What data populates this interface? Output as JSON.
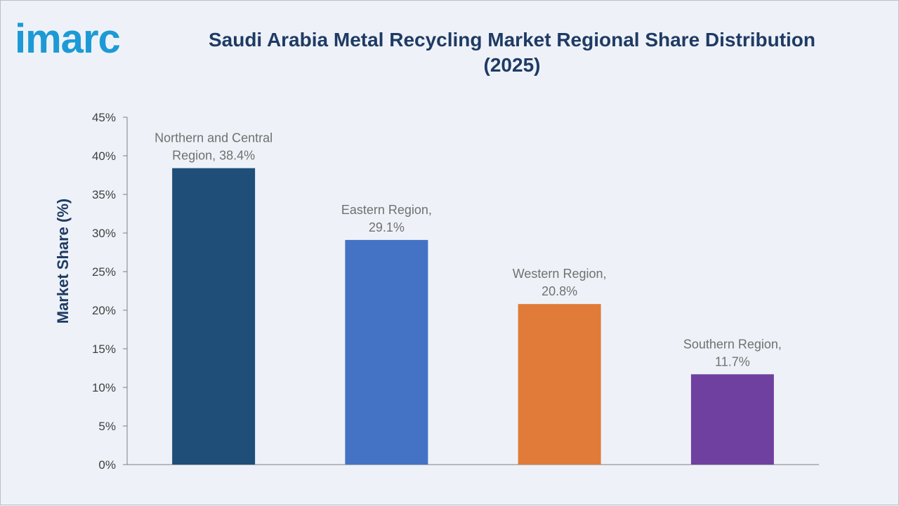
{
  "logo": {
    "text": "imarc",
    "color": "#1d9ad6"
  },
  "chart_data": {
    "type": "bar",
    "title_lines": [
      "Saudi Arabia Metal Recycling Market Regional Share Distribution",
      "(2025)"
    ],
    "xlabel": "",
    "ylabel": "Market Share (%)",
    "ylim": [
      0,
      45
    ],
    "yticks": [
      "0%",
      "5%",
      "10%",
      "15%",
      "20%",
      "25%",
      "30%",
      "35%",
      "40%",
      "45%"
    ],
    "ytick_values": [
      0,
      5,
      10,
      15,
      20,
      25,
      30,
      35,
      40,
      45
    ],
    "grid": false,
    "categories": [
      "Northern and Central Region",
      "Eastern Region",
      "Western Region",
      "Southern Region"
    ],
    "values": [
      38.4,
      29.1,
      20.8,
      11.7
    ],
    "data_labels": [
      [
        "Northern and Central",
        "Region, 38.4%"
      ],
      [
        "Eastern Region,",
        "29.1%"
      ],
      [
        "Western Region,",
        "20.8%"
      ],
      [
        "Southern Region,",
        "11.7%"
      ]
    ],
    "colors": [
      "#1f4e79",
      "#4472c4",
      "#e07b39",
      "#7040a0"
    ]
  },
  "colors": {
    "background": "#eef2f8",
    "title": "#1f3b64",
    "axis": "#7f7f7f",
    "tick_text": "#404040",
    "data_label": "#707070"
  }
}
